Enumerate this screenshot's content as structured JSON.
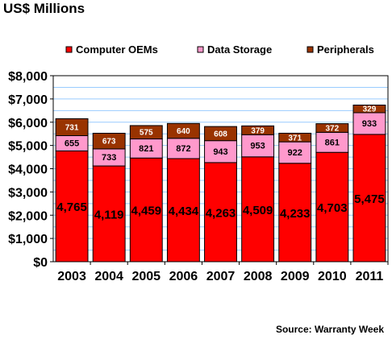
{
  "colors": {
    "computer_oems": "#ff0000",
    "data_storage": "#ff99cc",
    "peripherals": "#993300",
    "plot_background": "#ffffff",
    "gridlines": "#99ccff"
  },
  "chart_data": {
    "type": "bar",
    "stacked": true,
    "title": "US$ Millions",
    "source": "Source: Warranty Week",
    "categories": [
      "2003",
      "2004",
      "2005",
      "2006",
      "2007",
      "2008",
      "2009",
      "2010",
      "2011"
    ],
    "series": [
      {
        "name": "Computer OEMs",
        "values": [
          4765,
          4119,
          4459,
          4434,
          4263,
          4509,
          4233,
          4703,
          5475
        ]
      },
      {
        "name": "Data Storage",
        "values": [
          655,
          733,
          821,
          872,
          943,
          953,
          922,
          861,
          933
        ]
      },
      {
        "name": "Peripherals",
        "values": [
          731,
          673,
          575,
          640,
          608,
          379,
          371,
          372,
          329
        ]
      }
    ],
    "value_labels": [
      [
        "4,765",
        "4,119",
        "4,459",
        "4,434",
        "4,263",
        "4,509",
        "4,233",
        "4,703",
        "5,475"
      ],
      [
        "655",
        "733",
        "821",
        "872",
        "943",
        "953",
        "922",
        "861",
        "933"
      ],
      [
        "731",
        "673",
        "575",
        "640",
        "608",
        "379",
        "371",
        "372",
        "329"
      ]
    ],
    "yticks": [
      "$0",
      "$1,000",
      "$2,000",
      "$3,000",
      "$4,000",
      "$5,000",
      "$6,000",
      "$7,000",
      "$8,000"
    ],
    "ylim": [
      0,
      8000
    ],
    "grid": true,
    "legend_position": "top"
  }
}
